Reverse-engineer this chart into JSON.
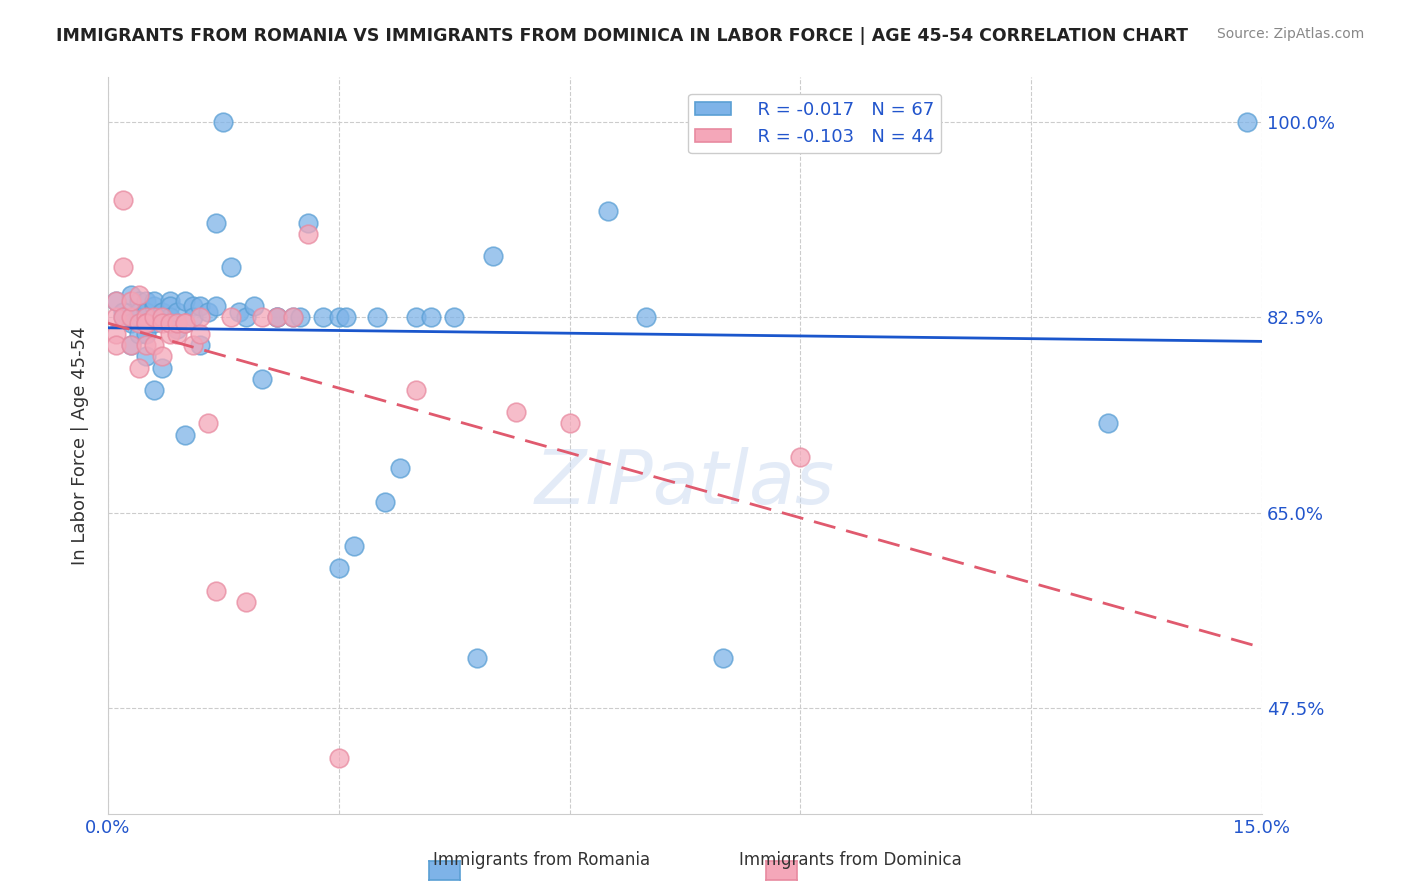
{
  "title": "IMMIGRANTS FROM ROMANIA VS IMMIGRANTS FROM DOMINICA IN LABOR FORCE | AGE 45-54 CORRELATION CHART",
  "source": "Source: ZipAtlas.com",
  "ylabel": "In Labor Force | Age 45-54",
  "xlim": [
    0.0,
    0.15
  ],
  "ylim": [
    0.38,
    1.04
  ],
  "xtick_positions": [
    0.0,
    0.03,
    0.06,
    0.09,
    0.12,
    0.15
  ],
  "ytick_positions": [
    1.0,
    0.825,
    0.65,
    0.475
  ],
  "ytick_labels": [
    "100.0%",
    "82.5%",
    "65.0%",
    "47.5%"
  ],
  "romania_color": "#7eb3e8",
  "dominica_color": "#f4a7b9",
  "romania_edge": "#5a9fd4",
  "dominica_edge": "#e88aa0",
  "trend_romania_color": "#1a56cc",
  "trend_dominica_color": "#e05a6e",
  "R_romania": -0.017,
  "N_romania": 67,
  "R_dominica": -0.103,
  "N_dominica": 44,
  "watermark": "ZIPatlas",
  "legend_label_romania": "Immigrants from Romania",
  "legend_label_dominica": "Immigrants from Dominica",
  "romania_x": [
    0.001,
    0.002,
    0.002,
    0.003,
    0.003,
    0.003,
    0.004,
    0.004,
    0.004,
    0.004,
    0.005,
    0.005,
    0.005,
    0.005,
    0.005,
    0.006,
    0.006,
    0.006,
    0.006,
    0.007,
    0.007,
    0.007,
    0.008,
    0.008,
    0.008,
    0.009,
    0.009,
    0.009,
    0.01,
    0.01,
    0.011,
    0.011,
    0.012,
    0.012,
    0.013,
    0.014,
    0.014,
    0.015,
    0.016,
    0.017,
    0.018,
    0.019,
    0.02,
    0.022,
    0.022,
    0.024,
    0.025,
    0.026,
    0.028,
    0.03,
    0.03,
    0.031,
    0.032,
    0.035,
    0.036,
    0.038,
    0.04,
    0.042,
    0.045,
    0.048,
    0.05,
    0.065,
    0.07,
    0.08,
    0.085,
    0.13,
    0.148
  ],
  "romania_y": [
    0.84,
    0.83,
    0.825,
    0.8,
    0.82,
    0.845,
    0.84,
    0.825,
    0.81,
    0.83,
    0.79,
    0.84,
    0.825,
    0.81,
    0.83,
    0.76,
    0.82,
    0.835,
    0.84,
    0.825,
    0.83,
    0.78,
    0.84,
    0.835,
    0.825,
    0.815,
    0.82,
    0.83,
    0.72,
    0.84,
    0.835,
    0.825,
    0.835,
    0.8,
    0.83,
    0.91,
    0.835,
    1.0,
    0.87,
    0.83,
    0.825,
    0.835,
    0.77,
    0.825,
    0.825,
    0.825,
    0.825,
    0.91,
    0.825,
    0.825,
    0.6,
    0.825,
    0.62,
    0.825,
    0.66,
    0.69,
    0.825,
    0.825,
    0.825,
    0.52,
    0.88,
    0.92,
    0.825,
    0.52,
    1.0,
    0.73,
    1.0
  ],
  "dominica_x": [
    0.001,
    0.001,
    0.001,
    0.001,
    0.002,
    0.002,
    0.002,
    0.003,
    0.003,
    0.003,
    0.004,
    0.004,
    0.004,
    0.005,
    0.005,
    0.005,
    0.005,
    0.006,
    0.006,
    0.007,
    0.007,
    0.007,
    0.008,
    0.008,
    0.009,
    0.009,
    0.01,
    0.01,
    0.011,
    0.012,
    0.012,
    0.013,
    0.014,
    0.016,
    0.018,
    0.02,
    0.022,
    0.024,
    0.026,
    0.03,
    0.04,
    0.053,
    0.06,
    0.09
  ],
  "dominica_y": [
    0.825,
    0.81,
    0.84,
    0.8,
    0.825,
    0.93,
    0.87,
    0.825,
    0.84,
    0.8,
    0.845,
    0.78,
    0.82,
    0.825,
    0.82,
    0.82,
    0.8,
    0.825,
    0.8,
    0.825,
    0.82,
    0.79,
    0.81,
    0.82,
    0.81,
    0.82,
    0.82,
    0.82,
    0.8,
    0.825,
    0.81,
    0.73,
    0.58,
    0.825,
    0.57,
    0.825,
    0.825,
    0.825,
    0.9,
    0.43,
    0.76,
    0.74,
    0.73,
    0.7
  ]
}
